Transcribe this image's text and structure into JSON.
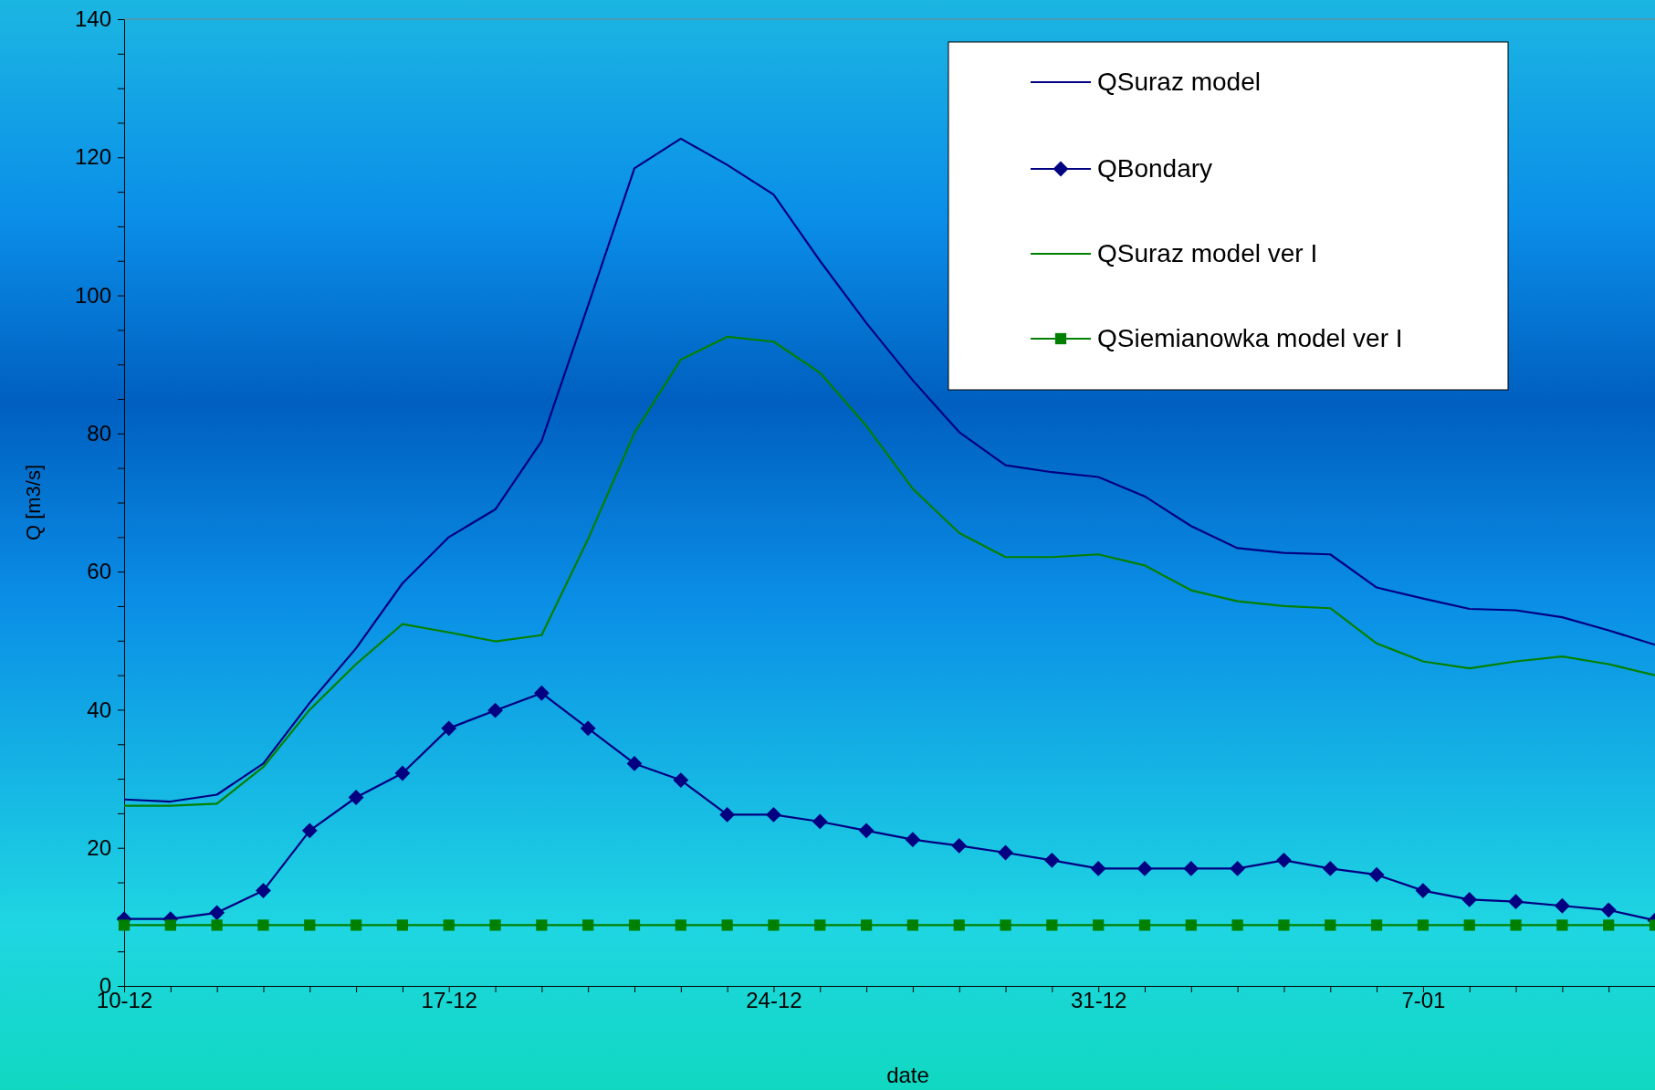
{
  "chart_data": {
    "type": "line",
    "xlabel": "date",
    "ylabel": "Q [m3/s]",
    "categories": [
      "10-12",
      null,
      null,
      null,
      null,
      null,
      null,
      "17-12",
      null,
      null,
      null,
      null,
      null,
      null,
      "24-12",
      null,
      null,
      null,
      null,
      null,
      null,
      "31-12",
      null,
      null,
      null,
      null,
      null,
      null,
      "7-01",
      null,
      null,
      null,
      null,
      null
    ],
    "ylim": [
      0,
      140
    ],
    "yticks": [
      0,
      {
        "value": 5,
        "label": null
      },
      {
        "value": 10,
        "label": null
      },
      {
        "value": 15,
        "label": null
      },
      20,
      {
        "value": 25,
        "label": null
      },
      {
        "value": 30,
        "label": null
      },
      {
        "value": 35,
        "label": null
      },
      40,
      {
        "value": 45,
        "label": null
      },
      {
        "value": 50,
        "label": null
      },
      {
        "value": 55,
        "label": null
      },
      60,
      {
        "value": 65,
        "label": null
      },
      {
        "value": 70,
        "label": null
      },
      {
        "value": 75,
        "label": null
      },
      80,
      {
        "value": 85,
        "label": null
      },
      {
        "value": 90,
        "label": null
      },
      {
        "value": 95,
        "label": null
      },
      100,
      {
        "value": 105,
        "label": null
      },
      {
        "value": 110,
        "label": null
      },
      {
        "value": 115,
        "label": null
      },
      120,
      {
        "value": 125,
        "label": null
      },
      {
        "value": 130,
        "label": null
      },
      {
        "value": 135,
        "label": null
      },
      140
    ],
    "grid": false,
    "legend": "top right",
    "series": [
      {
        "name": "QSuraz model",
        "color": "#000080",
        "marker": "none",
        "values": [
          27.0,
          26.7,
          27.7,
          32.2,
          41.0,
          48.9,
          58.3,
          65.0,
          69.0,
          78.9,
          98.5,
          118.4,
          122.7,
          118.9,
          114.6,
          105.0,
          96.0,
          87.7,
          80.2,
          75.4,
          74.4,
          73.7,
          70.9,
          66.6,
          63.4,
          62.7,
          62.5,
          57.7,
          56.1,
          54.6,
          54.4,
          53.4,
          51.5,
          49.4
        ]
      },
      {
        "name": "QBondary",
        "color": "#000080",
        "marker": "diamond",
        "values": [
          9.7,
          9.7,
          10.6,
          13.8,
          22.5,
          27.3,
          30.8,
          37.3,
          39.9,
          42.4,
          37.3,
          32.2,
          29.8,
          24.8,
          24.8,
          23.8,
          22.5,
          21.2,
          20.3,
          19.3,
          18.2,
          17.0,
          17.0,
          17.0,
          17.0,
          18.2,
          17.0,
          16.1,
          13.8,
          12.5,
          12.2,
          11.6,
          11.0,
          9.5
        ]
      },
      {
        "name": "QSuraz model ver I",
        "color": "#008000",
        "marker": "none",
        "values": [
          26.1,
          26.1,
          26.4,
          31.7,
          40.0,
          46.6,
          52.4,
          51.2,
          49.9,
          50.8,
          64.7,
          80.1,
          90.7,
          94.0,
          93.3,
          88.8,
          81.1,
          72.0,
          65.6,
          62.1,
          62.1,
          62.5,
          60.9,
          57.3,
          55.7,
          55.0,
          54.7,
          49.6,
          47.0,
          46.0,
          47.0,
          47.7,
          46.6,
          45.0
        ]
      },
      {
        "name": "QSiemianowka model ver I",
        "color": "#008000",
        "marker": "square",
        "values": [
          8.8,
          8.8,
          8.8,
          8.8,
          8.8,
          8.8,
          8.8,
          8.8,
          8.8,
          8.8,
          8.8,
          8.8,
          8.8,
          8.8,
          8.8,
          8.8,
          8.8,
          8.8,
          8.8,
          8.8,
          8.8,
          8.8,
          8.8,
          8.8,
          8.8,
          8.8,
          8.8,
          8.8,
          8.8,
          8.8,
          8.8,
          8.8,
          8.8,
          8.8
        ]
      }
    ]
  }
}
